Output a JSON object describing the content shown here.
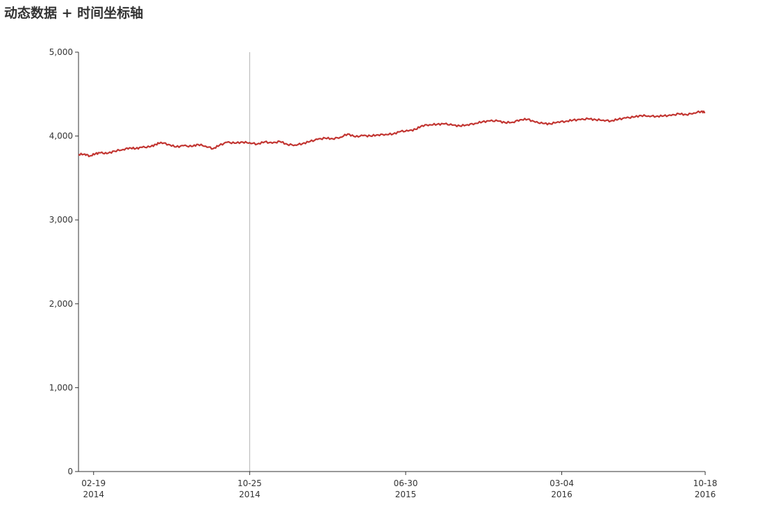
{
  "title": "动态数据 + 时间坐标轴",
  "colors": {
    "series": "#c23531",
    "axis": "#333333",
    "pointer": "#b0b0b0"
  },
  "chart_data": {
    "type": "line",
    "title": "动态数据 + 时间坐标轴",
    "xlabel": "",
    "ylabel": "",
    "xlim": [
      "2014-01-26",
      "2016-10-18"
    ],
    "ylim": [
      0,
      5000
    ],
    "y_ticks": [
      0,
      1000,
      2000,
      3000,
      4000,
      5000
    ],
    "y_tick_labels": [
      "0",
      "1,000",
      "2,000",
      "3,000",
      "4,000",
      "5,000"
    ],
    "x_ticks": [
      {
        "date": "2014-02-19",
        "line1": "02-19",
        "line2": "2014"
      },
      {
        "date": "2014-10-25",
        "line1": "10-25",
        "line2": "2014"
      },
      {
        "date": "2015-06-30",
        "line1": "06-30",
        "line2": "2015"
      },
      {
        "date": "2016-03-04",
        "line1": "03-04",
        "line2": "2016"
      },
      {
        "date": "2016-10-18",
        "line1": "10-18",
        "line2": "2016"
      }
    ],
    "axis_pointer_date": "2014-10-25",
    "grid": false,
    "legend": "none",
    "series": [
      {
        "values": [
          [
            "2014-01-26",
            3780
          ],
          [
            "2014-02-05",
            3785
          ],
          [
            "2014-02-13",
            3762
          ],
          [
            "2014-02-22",
            3790
          ],
          [
            "2014-03-02",
            3800
          ],
          [
            "2014-03-12",
            3790
          ],
          [
            "2014-03-24",
            3820
          ],
          [
            "2014-04-07",
            3840
          ],
          [
            "2014-04-17",
            3860
          ],
          [
            "2014-04-27",
            3850
          ],
          [
            "2014-05-07",
            3865
          ],
          [
            "2014-05-19",
            3870
          ],
          [
            "2014-05-29",
            3900
          ],
          [
            "2014-06-06",
            3925
          ],
          [
            "2014-06-18",
            3900
          ],
          [
            "2014-06-30",
            3870
          ],
          [
            "2014-07-12",
            3885
          ],
          [
            "2014-07-25",
            3875
          ],
          [
            "2014-08-04",
            3900
          ],
          [
            "2014-08-16",
            3880
          ],
          [
            "2014-08-28",
            3850
          ],
          [
            "2014-09-07",
            3890
          ],
          [
            "2014-09-19",
            3925
          ],
          [
            "2014-10-01",
            3915
          ],
          [
            "2014-10-14",
            3928
          ],
          [
            "2014-10-25",
            3920
          ],
          [
            "2014-11-06",
            3905
          ],
          [
            "2014-11-18",
            3930
          ],
          [
            "2014-11-30",
            3915
          ],
          [
            "2014-12-12",
            3935
          ],
          [
            "2014-12-24",
            3900
          ],
          [
            "2015-01-05",
            3893
          ],
          [
            "2015-01-17",
            3910
          ],
          [
            "2015-01-29",
            3935
          ],
          [
            "2015-02-10",
            3960
          ],
          [
            "2015-02-22",
            3975
          ],
          [
            "2015-03-06",
            3968
          ],
          [
            "2015-03-18",
            3985
          ],
          [
            "2015-03-30",
            4025
          ],
          [
            "2015-04-11",
            3990
          ],
          [
            "2015-04-23",
            4005
          ],
          [
            "2015-05-05",
            4000
          ],
          [
            "2015-05-17",
            4015
          ],
          [
            "2015-05-29",
            4020
          ],
          [
            "2015-06-10",
            4025
          ],
          [
            "2015-06-22",
            4055
          ],
          [
            "2015-07-04",
            4060
          ],
          [
            "2015-07-16",
            4080
          ],
          [
            "2015-07-26",
            4125
          ],
          [
            "2015-08-07",
            4135
          ],
          [
            "2015-08-19",
            4140
          ],
          [
            "2015-08-31",
            4145
          ],
          [
            "2015-09-12",
            4130
          ],
          [
            "2015-09-24",
            4120
          ],
          [
            "2015-10-06",
            4135
          ],
          [
            "2015-10-18",
            4150
          ],
          [
            "2015-10-30",
            4170
          ],
          [
            "2015-11-11",
            4180
          ],
          [
            "2015-11-23",
            4180
          ],
          [
            "2015-12-05",
            4160
          ],
          [
            "2015-12-17",
            4165
          ],
          [
            "2015-12-29",
            4195
          ],
          [
            "2016-01-10",
            4200
          ],
          [
            "2016-01-22",
            4165
          ],
          [
            "2016-02-03",
            4150
          ],
          [
            "2016-02-15",
            4145
          ],
          [
            "2016-02-27",
            4170
          ],
          [
            "2016-03-10",
            4175
          ],
          [
            "2016-03-22",
            4190
          ],
          [
            "2016-04-03",
            4195
          ],
          [
            "2016-04-15",
            4205
          ],
          [
            "2016-04-27",
            4195
          ],
          [
            "2016-05-09",
            4190
          ],
          [
            "2016-05-21",
            4180
          ],
          [
            "2016-06-02",
            4200
          ],
          [
            "2016-06-14",
            4215
          ],
          [
            "2016-06-26",
            4225
          ],
          [
            "2016-07-08",
            4245
          ],
          [
            "2016-07-20",
            4240
          ],
          [
            "2016-08-01",
            4235
          ],
          [
            "2016-08-13",
            4240
          ],
          [
            "2016-08-25",
            4245
          ],
          [
            "2016-09-06",
            4265
          ],
          [
            "2016-09-18",
            4255
          ],
          [
            "2016-09-30",
            4275
          ],
          [
            "2016-10-12",
            4295
          ],
          [
            "2016-10-18",
            4280
          ]
        ]
      }
    ]
  }
}
